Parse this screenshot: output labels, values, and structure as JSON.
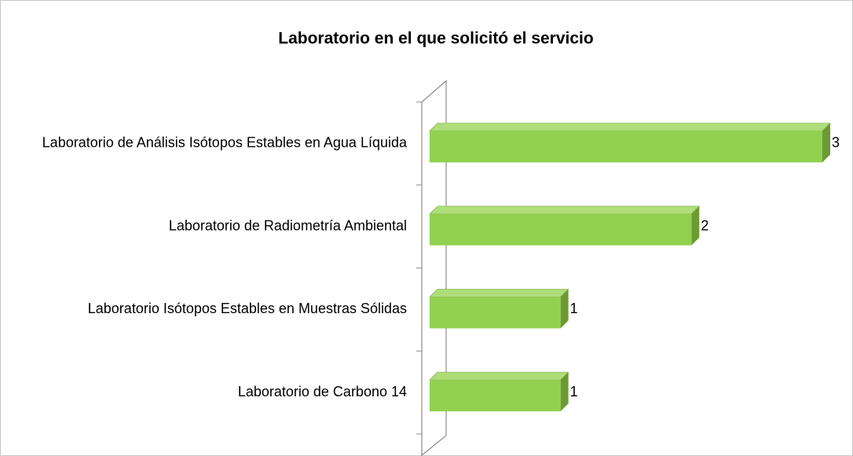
{
  "chart_data": {
    "type": "bar",
    "orientation": "horizontal",
    "title": "Laboratorio en el que solicitó el servicio",
    "categories": [
      "Laboratorio de Análisis Isótopos Estables en Agua Líquida",
      "Laboratorio de Radiometría Ambiental",
      "Laboratorio Isótopos Estables en Muestras Sólidas",
      "Laboratorio de Carbono 14"
    ],
    "values": [
      3,
      2,
      1,
      1
    ],
    "color": "#92d050"
  }
}
